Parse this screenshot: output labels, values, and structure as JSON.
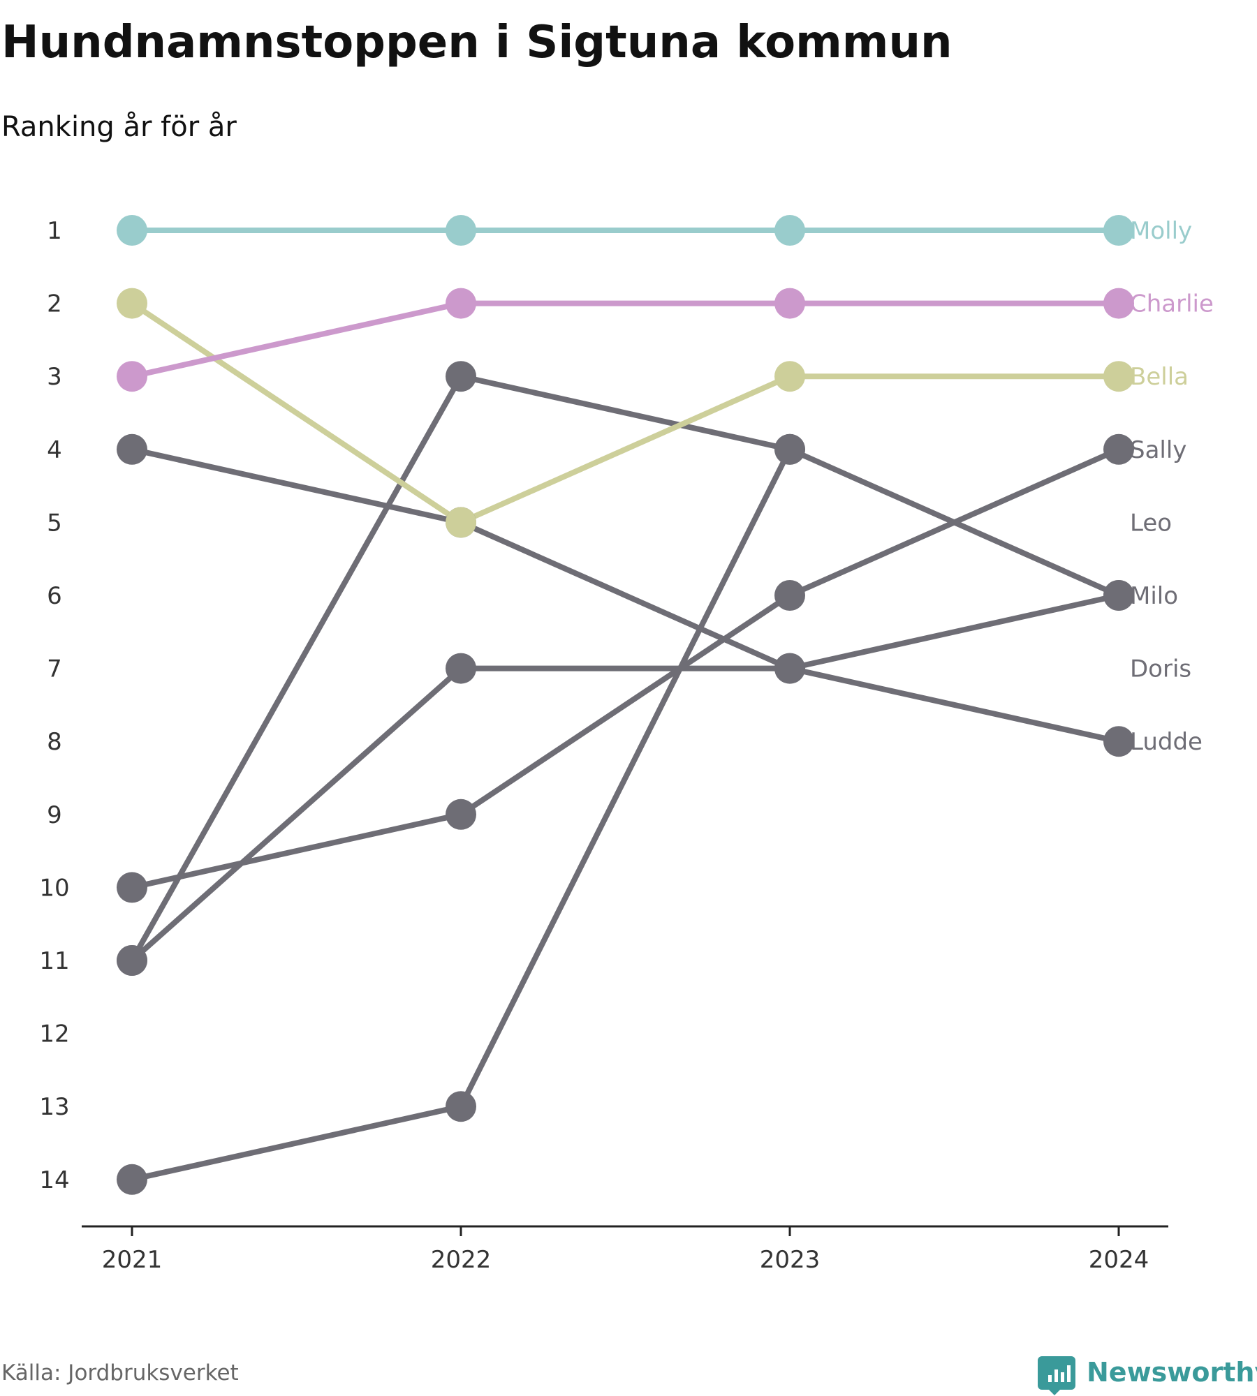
{
  "title": "Hundnamnstoppen i Sigtuna kommun",
  "subtitle": "Ranking år för år",
  "source": "Källa: Jordbruksverket",
  "brand": {
    "name": "Newsworthy",
    "color": "#3a9a9a"
  },
  "colors": {
    "grey": "#6e6d75",
    "axis": "#222222",
    "tick_label": "#333333",
    "source": "#666666",
    "title": "#111111"
  },
  "chart_data": {
    "type": "line",
    "title": "Hundnamnstoppen i Sigtuna kommun",
    "subtitle": "Ranking år för år",
    "xlabel": "",
    "ylabel": "",
    "x": [
      "2021",
      "2022",
      "2023",
      "2024"
    ],
    "y_axis": {
      "inverted": true,
      "range": [
        1,
        14
      ],
      "ticks": [
        "1",
        "2",
        "3",
        "4",
        "5",
        "6",
        "7",
        "8",
        "9",
        "10",
        "11",
        "12",
        "13",
        "14"
      ]
    },
    "grid": false,
    "legend": "end-labels",
    "series": [
      {
        "name": "Doris",
        "color": "#6e6d75",
        "values": [
          14,
          13,
          4,
          null
        ]
      },
      {
        "name": "Ludde",
        "color": "#6e6d75",
        "values": [
          4,
          5,
          7,
          8
        ]
      },
      {
        "name": "Milo",
        "color": "#6e6d75",
        "values": [
          11,
          3,
          4,
          6
        ]
      },
      {
        "name": "Leo",
        "color": "#6e6d75",
        "values": [
          11,
          7,
          7,
          6
        ]
      },
      {
        "name": "Sally",
        "color": "#6e6d75",
        "values": [
          10,
          9,
          6,
          4
        ]
      },
      {
        "name": "Bella",
        "color": "#cdcf9a",
        "values": [
          2,
          5,
          3,
          3
        ]
      },
      {
        "name": "Charlie",
        "color": "#cc99cc",
        "values": [
          3,
          2,
          2,
          2
        ]
      },
      {
        "name": "Molly",
        "color": "#99cccc",
        "values": [
          1,
          1,
          1,
          1
        ]
      }
    ],
    "end_labels": [
      {
        "name": "Molly",
        "color": "#99cccc",
        "rank": 1
      },
      {
        "name": "Charlie",
        "color": "#cc99cc",
        "rank": 2
      },
      {
        "name": "Bella",
        "color": "#cdcf9a",
        "rank": 3
      },
      {
        "name": "Sally",
        "color": "#6e6d75",
        "rank": 4
      },
      {
        "name": "Leo",
        "color": "#6e6d75",
        "rank": 5
      },
      {
        "name": "Milo",
        "color": "#6e6d75",
        "rank": 6
      },
      {
        "name": "Doris",
        "color": "#6e6d75",
        "rank": 7
      },
      {
        "name": "Ludde",
        "color": "#6e6d75",
        "rank": 8
      }
    ]
  }
}
